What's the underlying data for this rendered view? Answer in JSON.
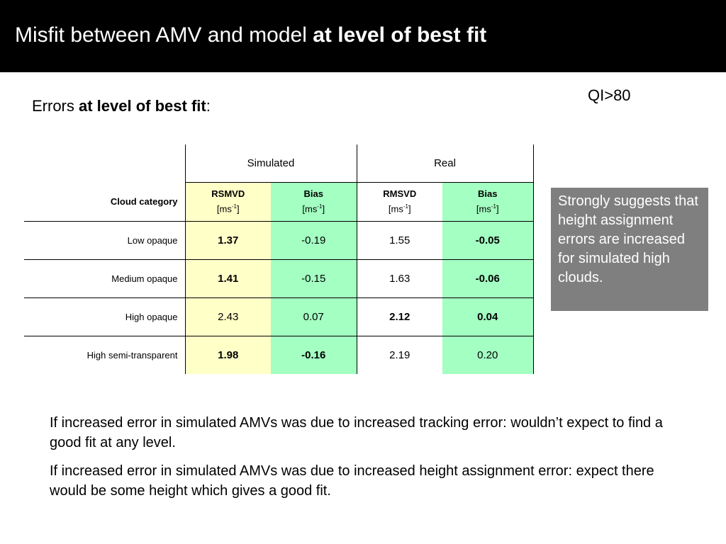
{
  "title": {
    "normal": "Misfit between AMV and model ",
    "bold": "at level of best fit"
  },
  "qi_label": "QI>80",
  "errors_label": {
    "normal": "Errors ",
    "bold": "at level of best fit",
    "suffix": ":"
  },
  "table": {
    "groups": [
      "Simulated",
      "Real"
    ],
    "category_header": "Cloud category",
    "columns": [
      {
        "name": "RSMVD",
        "unit_base": "[ms",
        "unit_exp": "-1",
        "unit_end": "]"
      },
      {
        "name": "Bias",
        "unit_base": "[ms",
        "unit_exp": "-1",
        "unit_end": "]"
      },
      {
        "name": "RMSVD",
        "unit_base": "[ms",
        "unit_exp": "-1",
        "unit_end": "]"
      },
      {
        "name": "Bias",
        "unit_base": "[ms",
        "unit_exp": "-1",
        "unit_end": "]"
      }
    ],
    "rows": [
      {
        "category": "Low opaque",
        "values": [
          "1.37",
          "-0.19",
          "1.55",
          "-0.05"
        ],
        "bold": [
          true,
          false,
          false,
          true
        ]
      },
      {
        "category": "Medium opaque",
        "values": [
          "1.41",
          "-0.15",
          "1.63",
          "-0.06"
        ],
        "bold": [
          true,
          false,
          false,
          true
        ]
      },
      {
        "category": "High opaque",
        "values": [
          "2.43",
          "0.07",
          "2.12",
          "0.04"
        ],
        "bold": [
          false,
          false,
          true,
          true
        ]
      },
      {
        "category": "High semi-transparent",
        "values": [
          "1.98",
          "-0.16",
          "2.19",
          "0.20"
        ],
        "bold": [
          true,
          true,
          false,
          false
        ]
      }
    ]
  },
  "note": "Strongly suggests that height assignment errors are increased for simulated high clouds.",
  "paragraphs": [
    "If increased error in simulated AMVs was due to increased tracking error: wouldn’t expect to find a good fit at any level.",
    "If increased error in simulated AMVs was due to increased height assignment error: expect there would be some height which gives a good fit."
  ],
  "colors": {
    "simulated_rmsvd_bg": "#ffffc8",
    "bias_bg": "#a3ffc2",
    "note_bg": "#7f7f7f",
    "header_bg": "#000000"
  }
}
